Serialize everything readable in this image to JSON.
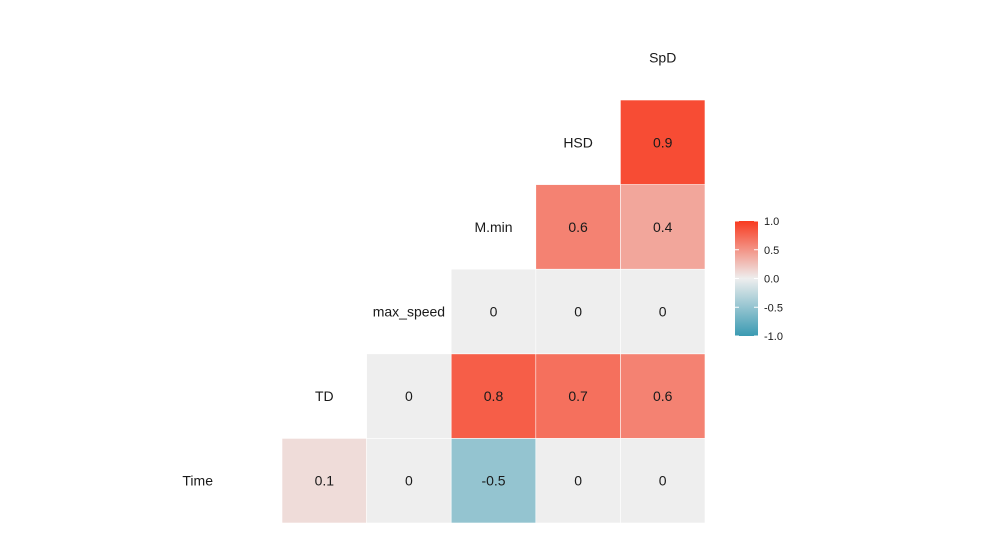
{
  "chart_data": {
    "type": "heatmap",
    "variables": [
      "Time",
      "TD",
      "max_speed",
      "M.min",
      "HSD",
      "SpD"
    ],
    "cells": [
      {
        "row": "Time",
        "col": "TD",
        "value": 0.1,
        "label": "0.1"
      },
      {
        "row": "Time",
        "col": "max_speed",
        "value": 0,
        "label": "0"
      },
      {
        "row": "Time",
        "col": "M.min",
        "value": -0.5,
        "label": "-0.5"
      },
      {
        "row": "Time",
        "col": "HSD",
        "value": 0,
        "label": "0"
      },
      {
        "row": "Time",
        "col": "SpD",
        "value": 0,
        "label": "0"
      },
      {
        "row": "TD",
        "col": "max_speed",
        "value": 0,
        "label": "0"
      },
      {
        "row": "TD",
        "col": "M.min",
        "value": 0.8,
        "label": "0.8"
      },
      {
        "row": "TD",
        "col": "HSD",
        "value": 0.7,
        "label": "0.7"
      },
      {
        "row": "TD",
        "col": "SpD",
        "value": 0.6,
        "label": "0.6"
      },
      {
        "row": "max_speed",
        "col": "M.min",
        "value": 0,
        "label": "0"
      },
      {
        "row": "max_speed",
        "col": "HSD",
        "value": 0,
        "label": "0"
      },
      {
        "row": "max_speed",
        "col": "SpD",
        "value": 0,
        "label": "0"
      },
      {
        "row": "M.min",
        "col": "HSD",
        "value": 0.6,
        "label": "0.6"
      },
      {
        "row": "M.min",
        "col": "SpD",
        "value": 0.4,
        "label": "0.4"
      },
      {
        "row": "HSD",
        "col": "SpD",
        "value": 0.9,
        "label": "0.9"
      }
    ],
    "color_scale": {
      "range": [
        -1,
        1
      ],
      "low": "#3a9ab2",
      "mid": "#eeeeee",
      "high": "#f83a1f"
    },
    "legend": {
      "position": "right",
      "ticks": [
        "1.0",
        "0.5",
        "0.0",
        "-0.5",
        "-1.0"
      ],
      "tick_values": [
        1,
        0.5,
        0,
        -0.5,
        -1
      ]
    }
  }
}
